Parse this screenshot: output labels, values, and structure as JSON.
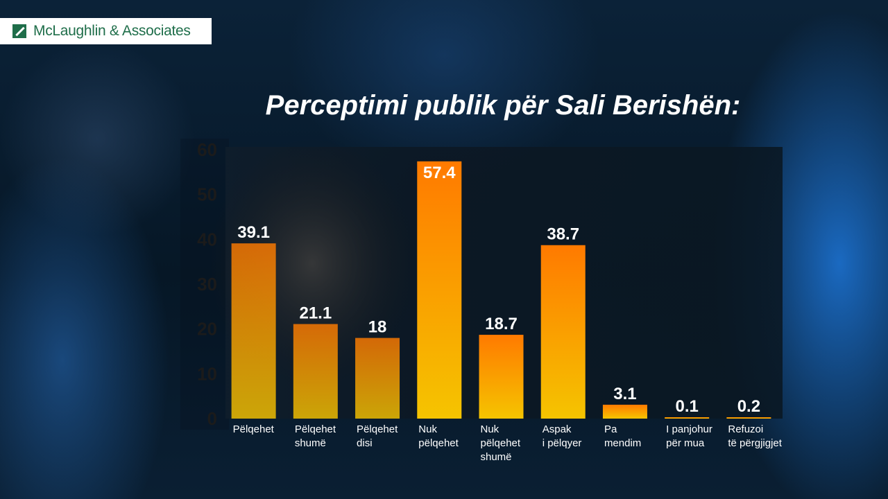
{
  "logo": {
    "text": "McLaughlin & Associates",
    "color": "#1f6e4a"
  },
  "chart_data": {
    "type": "bar",
    "title": "Perceptimi publik për Sali Berishën:",
    "xlabel": "",
    "ylabel": "",
    "ylim": [
      0,
      60
    ],
    "yticks": [
      0,
      10,
      20,
      30,
      40,
      50,
      60
    ],
    "grid": false,
    "categories": [
      [
        "Pëlqehet"
      ],
      [
        "Pëlqehet",
        "shumë"
      ],
      [
        "Pëlqehet",
        "disi"
      ],
      [
        "Nuk",
        "pëlqehet"
      ],
      [
        "Nuk",
        "pëlqehet",
        "shumë"
      ],
      [
        "Aspak",
        "i pëlqyer"
      ],
      [
        "Pa",
        "mendim"
      ],
      [
        "I panjohur",
        "për mua"
      ],
      [
        "Refuzoi",
        "të përgjigjet"
      ]
    ],
    "values": [
      39.1,
      21.1,
      18,
      57.4,
      18.7,
      38.7,
      3.1,
      0.1,
      0.2
    ],
    "data_labels": [
      "39.1",
      "21.1",
      "18",
      "57.4",
      "18.7",
      "38.7",
      "3.1",
      "0.1",
      "0.2"
    ],
    "colors": {
      "bar_top": "#ff7a00",
      "bar_bottom": "#f5c400",
      "axis_text": "#1b1b1b",
      "label_text": "#ffffff"
    }
  }
}
